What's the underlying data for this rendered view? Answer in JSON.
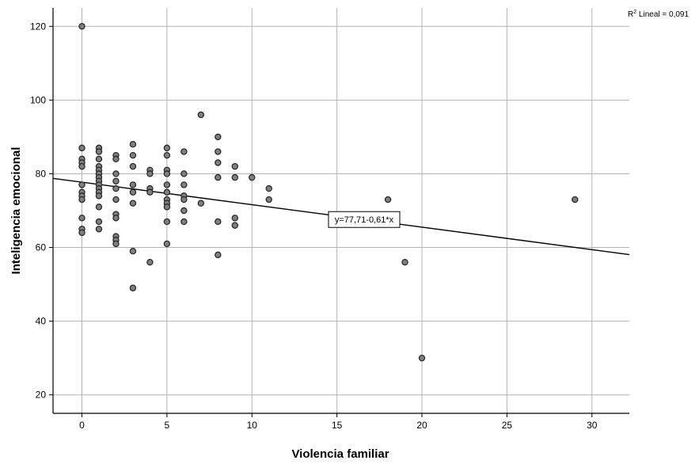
{
  "chart_data": {
    "type": "scatter",
    "xlabel": "Violencia familiar",
    "ylabel": "Inteligencia emocional",
    "xlim": [
      -1.7,
      32.2
    ],
    "ylim": [
      15,
      125
    ],
    "xticks": [
      0,
      5,
      10,
      15,
      20,
      25,
      30
    ],
    "yticks": [
      20,
      40,
      60,
      80,
      100,
      120
    ],
    "grid": true,
    "fit": {
      "intercept": 77.71,
      "slope": -0.61,
      "label": "y=77,71-0,61*x"
    },
    "r2_label": {
      "prefix": "R",
      "sup": "2",
      "text": " Lineal = 0,091"
    },
    "colors": {
      "point_fill": "#7f7f7f",
      "point_stroke": "#222222",
      "grid": "#b4b4b4",
      "line": "#000000"
    },
    "points": [
      [
        0,
        120
      ],
      [
        0,
        87
      ],
      [
        0,
        84
      ],
      [
        0,
        83
      ],
      [
        0,
        82
      ],
      [
        0,
        77
      ],
      [
        0,
        75
      ],
      [
        0,
        74
      ],
      [
        0,
        73
      ],
      [
        0,
        68
      ],
      [
        0,
        65
      ],
      [
        0,
        64
      ],
      [
        1,
        87
      ],
      [
        1,
        86
      ],
      [
        1,
        84
      ],
      [
        1,
        82
      ],
      [
        1,
        81
      ],
      [
        1,
        80
      ],
      [
        1,
        79
      ],
      [
        1,
        78
      ],
      [
        1,
        77
      ],
      [
        1,
        76
      ],
      [
        1,
        75
      ],
      [
        1,
        74
      ],
      [
        1,
        71
      ],
      [
        1,
        67
      ],
      [
        1,
        65
      ],
      [
        2,
        85
      ],
      [
        2,
        84
      ],
      [
        2,
        80
      ],
      [
        2,
        78
      ],
      [
        2,
        76
      ],
      [
        2,
        73
      ],
      [
        2,
        69
      ],
      [
        2,
        68
      ],
      [
        2,
        63
      ],
      [
        2,
        62
      ],
      [
        2,
        61
      ],
      [
        3,
        88
      ],
      [
        3,
        85
      ],
      [
        3,
        82
      ],
      [
        3,
        77
      ],
      [
        3,
        75
      ],
      [
        3,
        72
      ],
      [
        3,
        59
      ],
      [
        3,
        49
      ],
      [
        4,
        81
      ],
      [
        4,
        80
      ],
      [
        4,
        76
      ],
      [
        4,
        75
      ],
      [
        4,
        56
      ],
      [
        5,
        87
      ],
      [
        5,
        85
      ],
      [
        5,
        81
      ],
      [
        5,
        80
      ],
      [
        5,
        77
      ],
      [
        5,
        75
      ],
      [
        5,
        73
      ],
      [
        5,
        72
      ],
      [
        5,
        71
      ],
      [
        5,
        67
      ],
      [
        5,
        61
      ],
      [
        6,
        86
      ],
      [
        6,
        80
      ],
      [
        6,
        77
      ],
      [
        6,
        74
      ],
      [
        6,
        73
      ],
      [
        6,
        70
      ],
      [
        6,
        67
      ],
      [
        7,
        96
      ],
      [
        7,
        72
      ],
      [
        8,
        90
      ],
      [
        8,
        86
      ],
      [
        8,
        83
      ],
      [
        8,
        79
      ],
      [
        8,
        67
      ],
      [
        8,
        58
      ],
      [
        9,
        82
      ],
      [
        9,
        79
      ],
      [
        9,
        68
      ],
      [
        9,
        66
      ],
      [
        10,
        79
      ],
      [
        11,
        76
      ],
      [
        11,
        73
      ],
      [
        18,
        73
      ],
      [
        19,
        56
      ],
      [
        20,
        30
      ],
      [
        29,
        73
      ]
    ]
  }
}
